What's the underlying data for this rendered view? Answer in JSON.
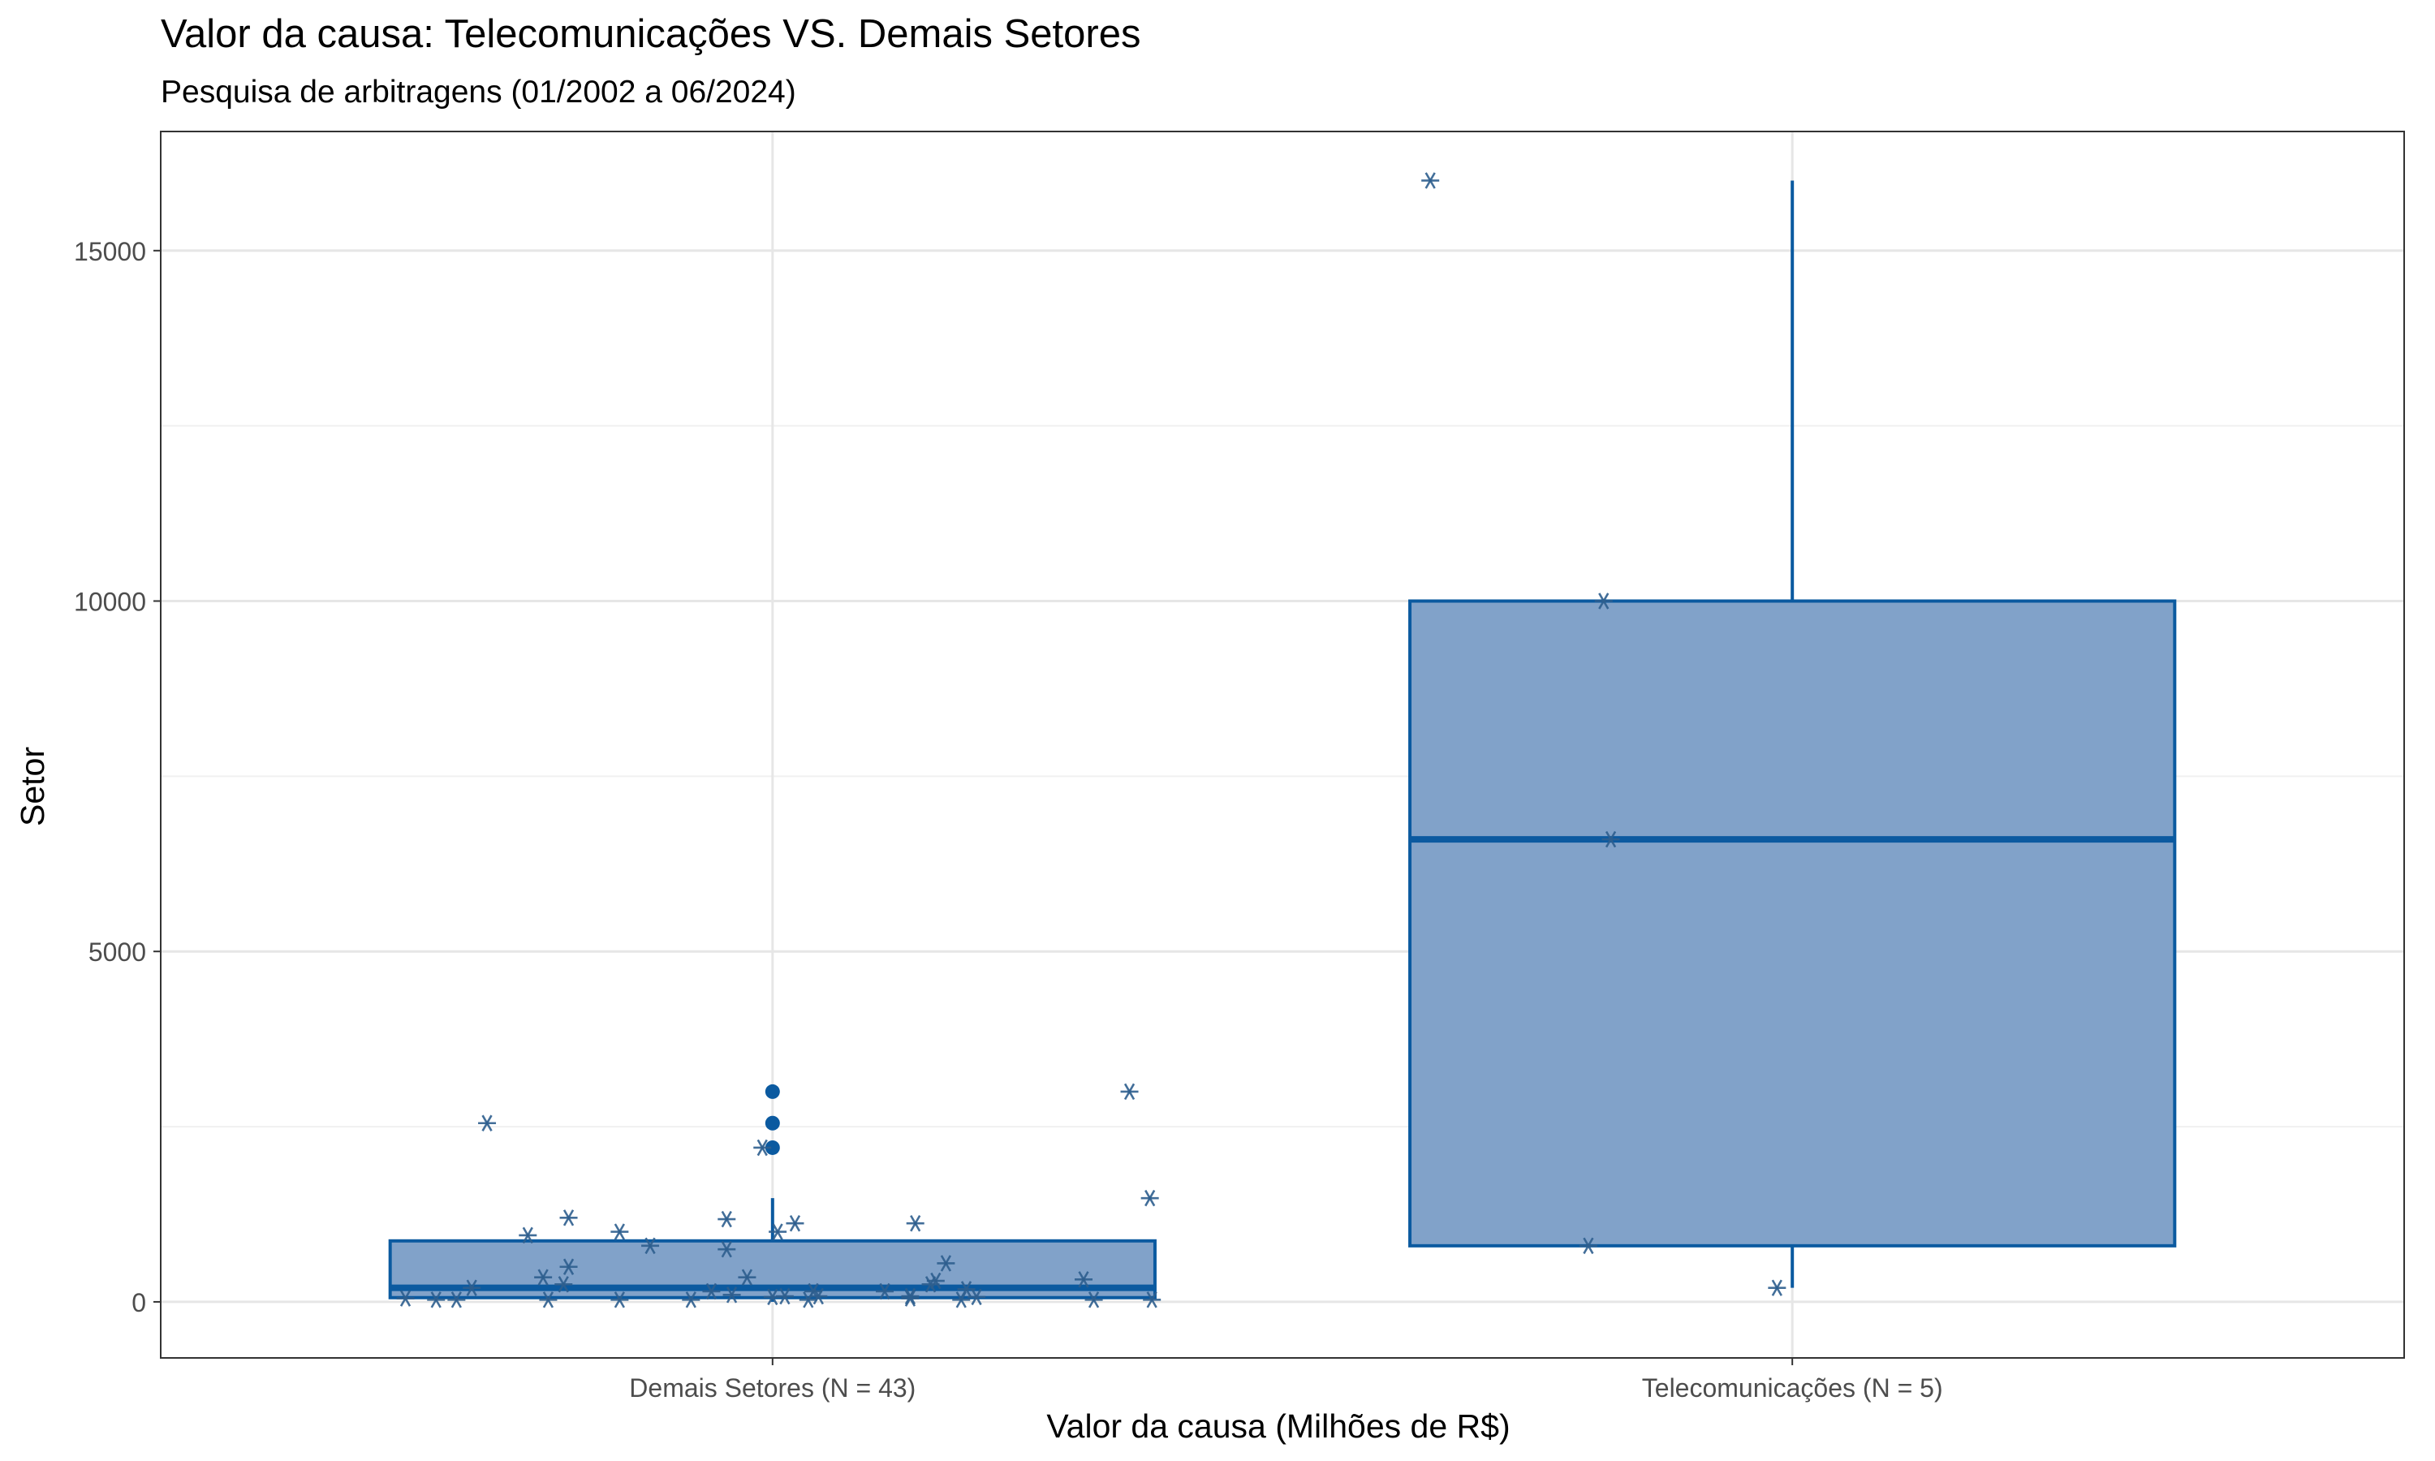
{
  "chart_data": {
    "type": "boxplot",
    "title": "Valor da causa: Telecomunicações VS. Demais Setores",
    "subtitle": "Pesquisa de arbitragens (01/2002 a 06/2024)",
    "xlabel": "Valor da causa (Milhões de R$)",
    "ylabel": "Setor",
    "categories": [
      "Demais Setores (N = 43)",
      "Telecomunicações (N = 5)"
    ],
    "ylim": [
      -800,
      16700
    ],
    "yticks": [
      0,
      5000,
      10000,
      15000
    ],
    "y_minor_gridlines": [
      2500,
      7500,
      12500
    ],
    "grid": true,
    "colors": {
      "box_fill": "#81a2c9",
      "box_line": "#0b5aa0",
      "points": "#2e5e8e"
    },
    "boxes": [
      {
        "category": "Demais Setores (N = 43)",
        "min": 0,
        "q1": 60,
        "median": 200,
        "q3": 870,
        "max": 1480,
        "outliers": [
          2200,
          2550,
          3000
        ]
      },
      {
        "category": "Telecomunicações (N = 5)",
        "min": 200,
        "q1": 800,
        "median": 6600,
        "q3": 10000,
        "max": 16000,
        "outliers": []
      }
    ],
    "jitter_points": [
      {
        "category": "Demais Setores (N = 43)",
        "values": [
          {
            "dx": -0.36,
            "y": 50
          },
          {
            "dx": -0.33,
            "y": 30
          },
          {
            "dx": -0.31,
            "y": 30
          },
          {
            "dx": -0.295,
            "y": 200
          },
          {
            "dx": -0.28,
            "y": 2550
          },
          {
            "dx": -0.24,
            "y": 950
          },
          {
            "dx": -0.225,
            "y": 350
          },
          {
            "dx": -0.22,
            "y": 30
          },
          {
            "dx": -0.205,
            "y": 250
          },
          {
            "dx": -0.2,
            "y": 1200
          },
          {
            "dx": -0.2,
            "y": 500
          },
          {
            "dx": -0.15,
            "y": 1000
          },
          {
            "dx": -0.15,
            "y": 30
          },
          {
            "dx": -0.12,
            "y": 800
          },
          {
            "dx": -0.08,
            "y": 30
          },
          {
            "dx": -0.06,
            "y": 150
          },
          {
            "dx": -0.045,
            "y": 1180
          },
          {
            "dx": -0.045,
            "y": 750
          },
          {
            "dx": -0.04,
            "y": 100
          },
          {
            "dx": -0.025,
            "y": 350
          },
          {
            "dx": -0.01,
            "y": 2200
          },
          {
            "dx": 0.0,
            "y": 70
          },
          {
            "dx": 0.005,
            "y": 1000
          },
          {
            "dx": 0.012,
            "y": 80
          },
          {
            "dx": 0.022,
            "y": 1120
          },
          {
            "dx": 0.035,
            "y": 30
          },
          {
            "dx": 0.04,
            "y": 150
          },
          {
            "dx": 0.045,
            "y": 80
          },
          {
            "dx": 0.11,
            "y": 150
          },
          {
            "dx": 0.135,
            "y": 80
          },
          {
            "dx": 0.135,
            "y": 50
          },
          {
            "dx": 0.14,
            "y": 1120
          },
          {
            "dx": 0.155,
            "y": 250
          },
          {
            "dx": 0.16,
            "y": 300
          },
          {
            "dx": 0.17,
            "y": 550
          },
          {
            "dx": 0.185,
            "y": 30
          },
          {
            "dx": 0.19,
            "y": 180
          },
          {
            "dx": 0.2,
            "y": 70
          },
          {
            "dx": 0.305,
            "y": 320
          },
          {
            "dx": 0.315,
            "y": 30
          },
          {
            "dx": 0.35,
            "y": 3000
          },
          {
            "dx": 0.37,
            "y": 1480
          },
          {
            "dx": 0.372,
            "y": 30
          }
        ]
      },
      {
        "category": "Telecomunicações (N = 5)",
        "values": [
          {
            "dx": -0.355,
            "y": 16000
          },
          {
            "dx": -0.185,
            "y": 10000
          },
          {
            "dx": -0.178,
            "y": 6600
          },
          {
            "dx": -0.2,
            "y": 800
          },
          {
            "dx": -0.015,
            "y": 200
          }
        ]
      }
    ]
  }
}
